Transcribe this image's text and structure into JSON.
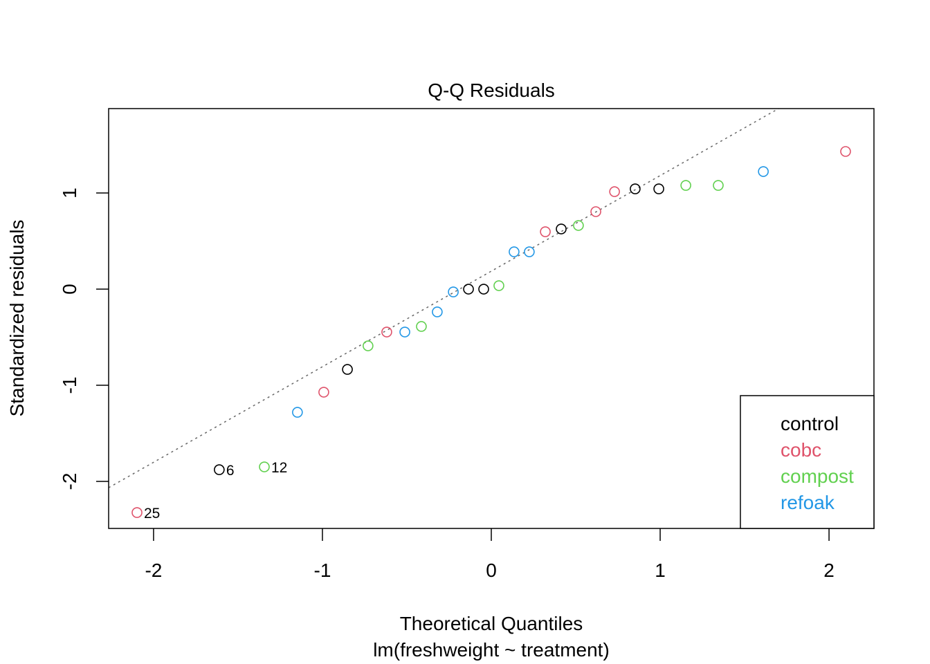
{
  "chart_data": {
    "type": "scatter",
    "title": "Q-Q Residuals",
    "xlabel": "Theoretical Quantiles",
    "subtitle": "lm(freshweight ~ treatment)",
    "ylabel": "Standardized residuals",
    "xlim": [
      -2.266,
      2.266
    ],
    "ylim": [
      -2.489,
      1.878
    ],
    "xticks": [
      -2,
      -1,
      0,
      1,
      2
    ],
    "xtick_labels": [
      "-2",
      "-1",
      "0",
      "1",
      "2"
    ],
    "yticks": [
      -2,
      -1,
      0,
      1
    ],
    "ytick_labels": [
      "-2",
      "-1",
      "0",
      "1"
    ],
    "grid": false,
    "legend_position": "bottom-right",
    "reference_line": {
      "intercept": 0.187,
      "slope": 0.994,
      "style": "dotted",
      "color": "#666666"
    },
    "series": [
      {
        "name": "control",
        "color": "#000000",
        "x": [
          -1.611,
          -0.852,
          -0.135,
          -0.045,
          0.414,
          0.852,
          0.992
        ],
        "y": [
          -1.878,
          -0.835,
          0.0,
          0.0,
          0.626,
          1.043,
          1.043
        ]
      },
      {
        "name": "cobc",
        "color": "#DF536B",
        "x": [
          -2.098,
          -0.992,
          -0.619,
          0.32,
          0.619,
          0.73,
          2.098
        ],
        "y": [
          -2.324,
          -1.072,
          -0.446,
          0.597,
          0.806,
          1.014,
          1.432
        ]
      },
      {
        "name": "compost",
        "color": "#61D04F",
        "x": [
          -1.344,
          -0.73,
          -0.414,
          0.045,
          0.516,
          1.152,
          1.344
        ],
        "y": [
          -1.849,
          -0.59,
          -0.388,
          0.036,
          0.662,
          1.079,
          1.079
        ]
      },
      {
        "name": "refoak",
        "color": "#2297E6",
        "x": [
          -1.148,
          -0.512,
          -0.32,
          -0.225,
          0.135,
          0.225,
          1.611
        ],
        "y": [
          -1.281,
          -0.446,
          -0.237,
          -0.029,
          0.388,
          0.388,
          1.223
        ]
      }
    ],
    "annotations": [
      {
        "label": "25",
        "x": -2.098,
        "y": -2.324
      },
      {
        "label": "6",
        "x": -1.611,
        "y": -1.878
      },
      {
        "label": "12",
        "x": -1.344,
        "y": -1.849
      }
    ]
  }
}
